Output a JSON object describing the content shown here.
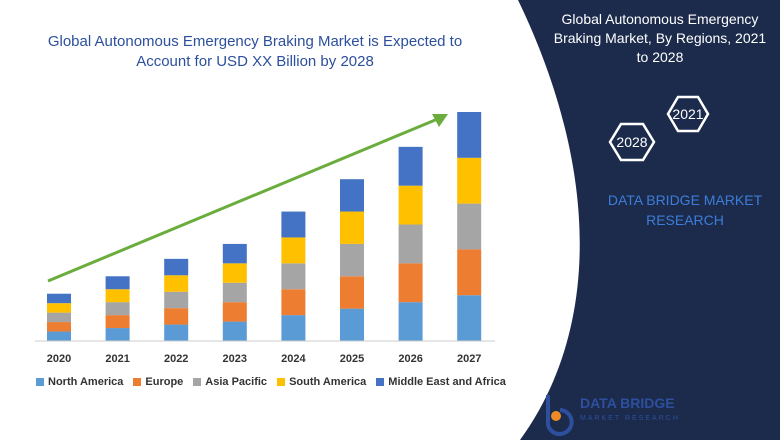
{
  "chart_data": {
    "type": "bar",
    "stacked": true,
    "title": "Global Autonomous Emergency Braking Market is Expected to Account for USD XX Billion by 2028",
    "categories": [
      "2020",
      "2021",
      "2022",
      "2023",
      "2024",
      "2025",
      "2026",
      "2027"
    ],
    "series": [
      {
        "name": "North America",
        "color": "#5b9bd5",
        "values": [
          1.9,
          2.6,
          3.3,
          3.9,
          5.2,
          6.5,
          7.8,
          9.2
        ]
      },
      {
        "name": "Europe",
        "color": "#ed7d31",
        "values": [
          1.9,
          2.6,
          3.3,
          3.9,
          5.2,
          6.5,
          7.8,
          9.2
        ]
      },
      {
        "name": "Asia Pacific",
        "color": "#a5a5a5",
        "values": [
          1.9,
          2.6,
          3.3,
          3.9,
          5.2,
          6.5,
          7.8,
          9.2
        ]
      },
      {
        "name": "South America",
        "color": "#ffc000",
        "values": [
          1.9,
          2.6,
          3.3,
          3.9,
          5.2,
          6.5,
          7.8,
          9.2
        ]
      },
      {
        "name": "Middle East and Africa",
        "color": "#4472c4",
        "values": [
          1.9,
          2.6,
          3.3,
          3.9,
          5.2,
          6.5,
          7.8,
          9.2
        ]
      }
    ],
    "legend": "bottom"
  },
  "panel": {
    "title": "Global Autonomous Emergency Braking Market, By Regions, 2021 to 2028",
    "hexagons": [
      "2021",
      "2028"
    ],
    "brand": "DATA BRIDGE MARKET RESEARCH"
  },
  "logo": {
    "name": "DATA BRIDGE",
    "tagline": "MARKET RESEARCH"
  }
}
